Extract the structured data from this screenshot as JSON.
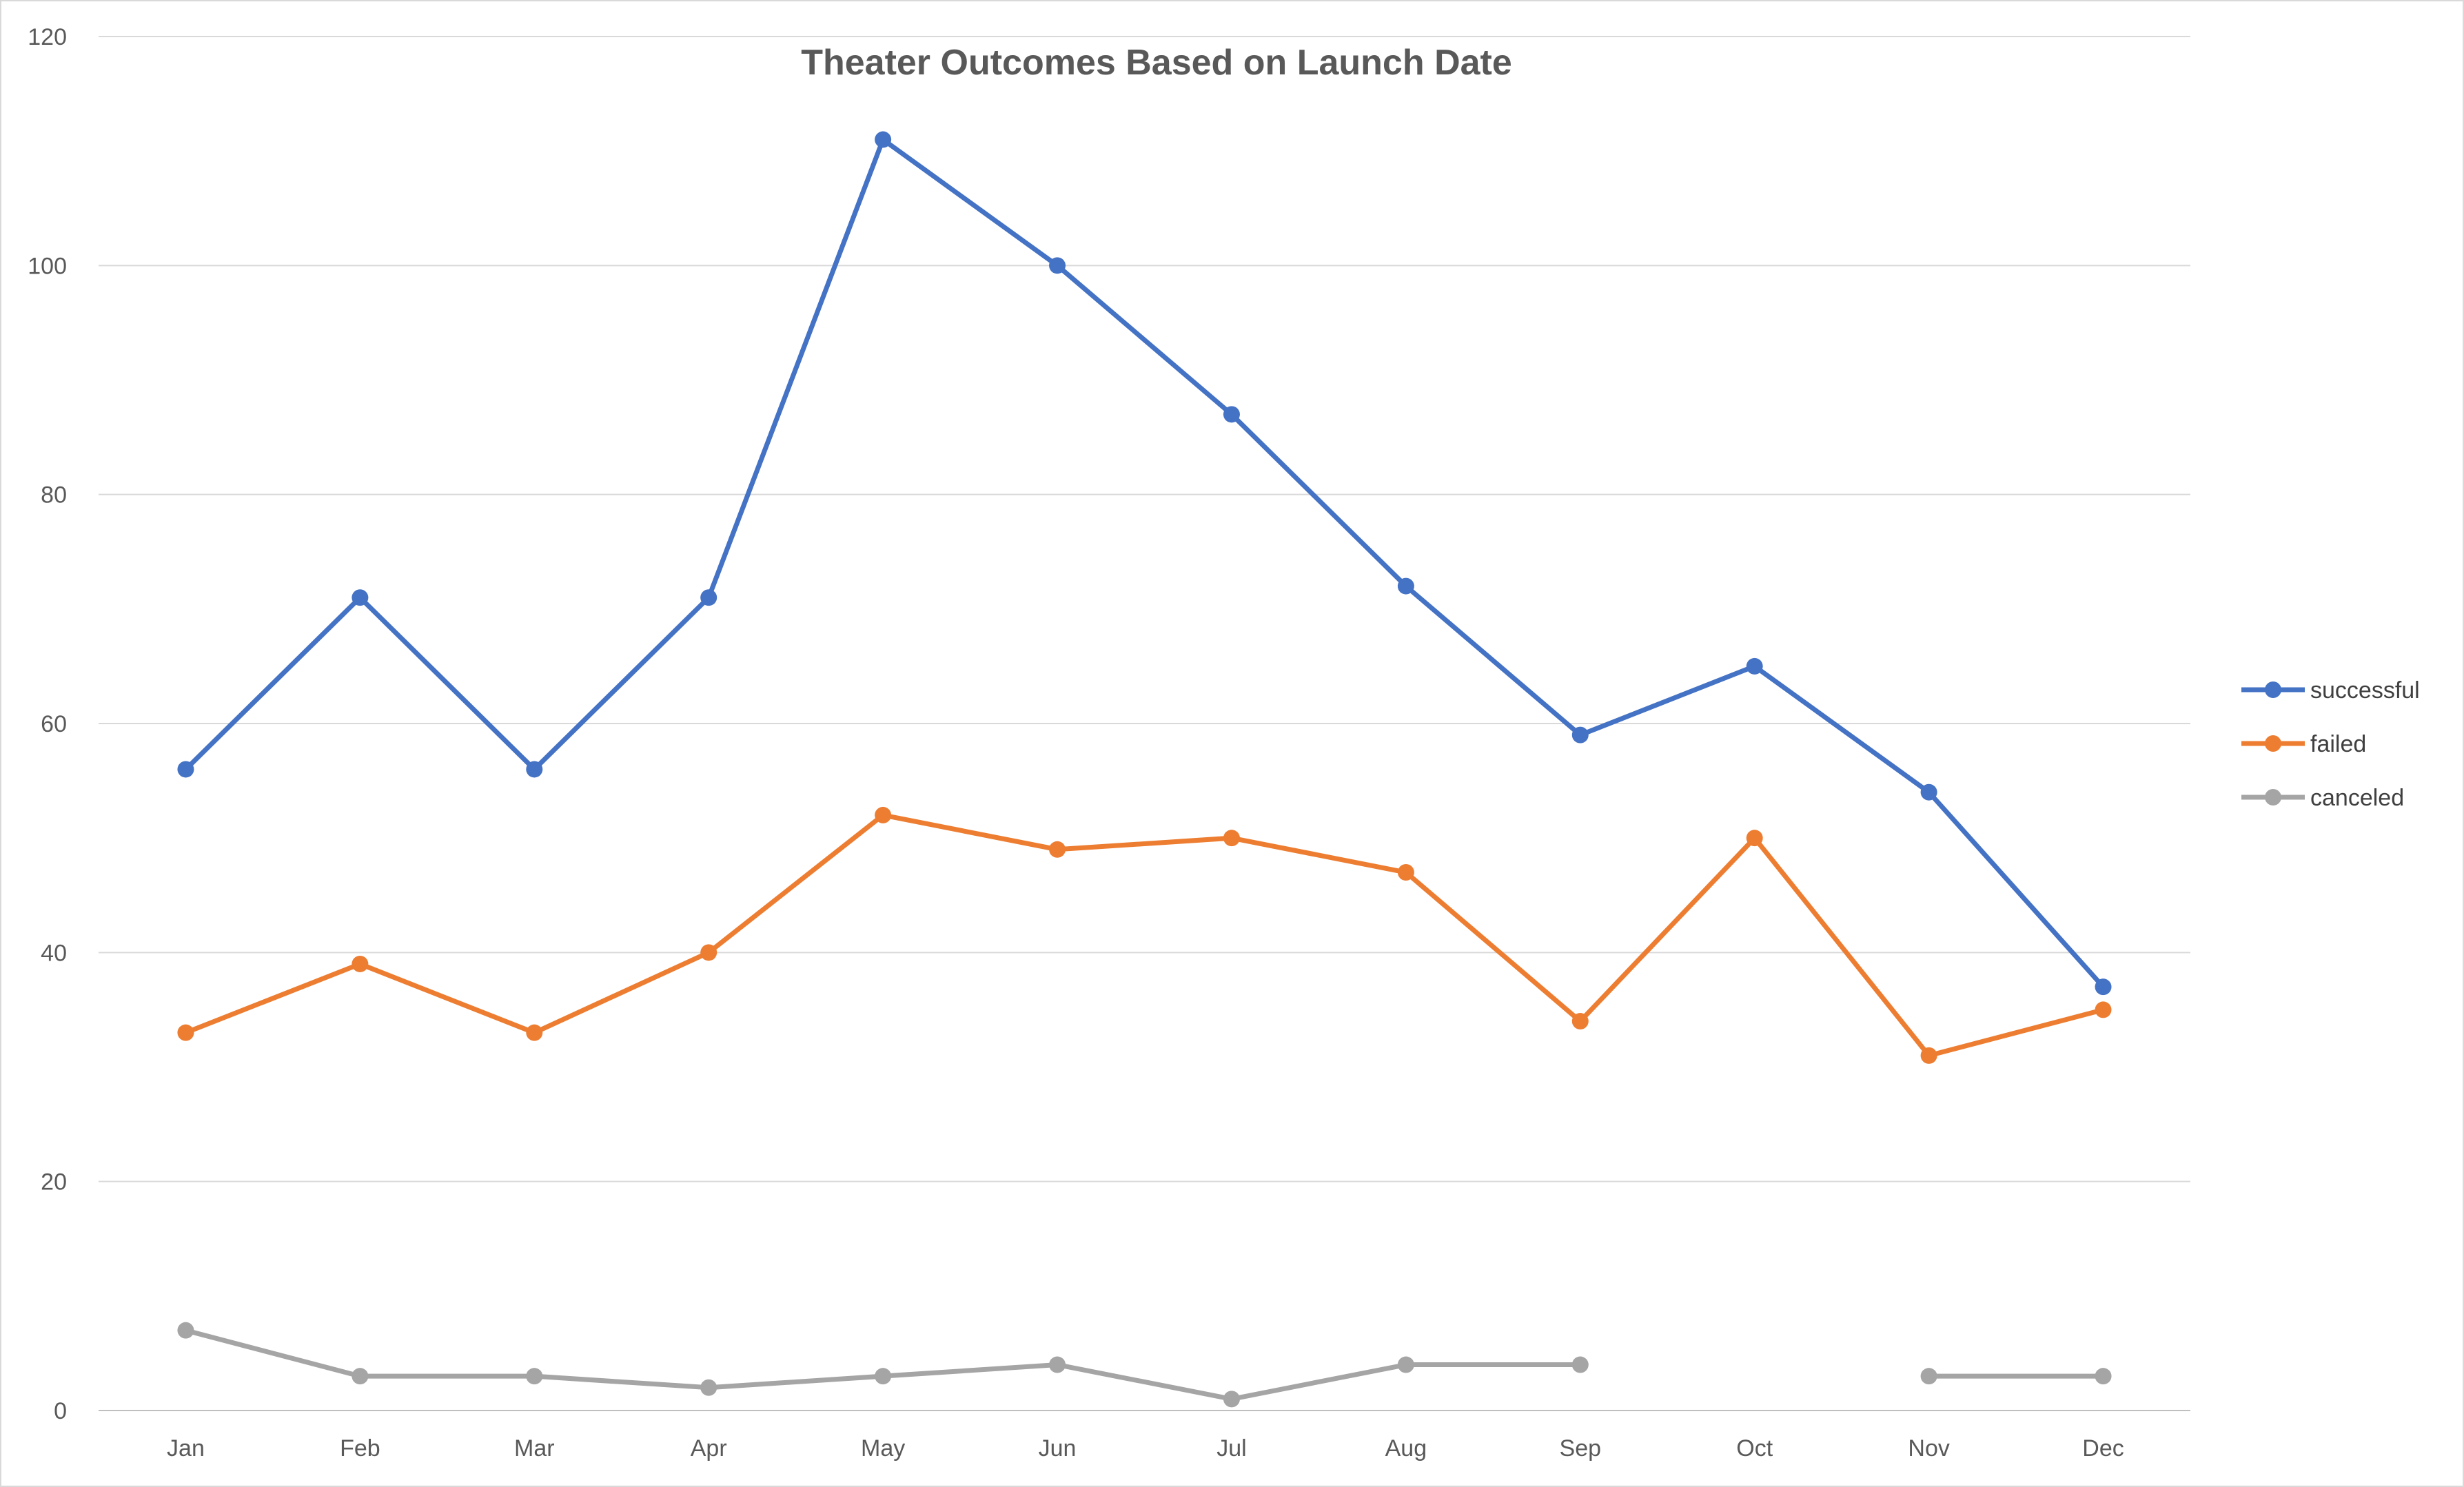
{
  "chart_data": {
    "type": "line",
    "title": "Theater Outcomes Based on Launch Date",
    "xlabel": "",
    "ylabel": "",
    "categories": [
      "Jan",
      "Feb",
      "Mar",
      "Apr",
      "May",
      "Jun",
      "Jul",
      "Aug",
      "Sep",
      "Oct",
      "Nov",
      "Dec"
    ],
    "ylim": [
      0,
      120
    ],
    "yticks": [
      0,
      20,
      40,
      60,
      80,
      100,
      120
    ],
    "grid": true,
    "legend_position": "right",
    "series": [
      {
        "name": "successful",
        "color": "#4472C4",
        "values": [
          56,
          71,
          56,
          71,
          111,
          100,
          87,
          72,
          59,
          65,
          54,
          37
        ]
      },
      {
        "name": "failed",
        "color": "#ED7D31",
        "values": [
          33,
          39,
          33,
          40,
          52,
          49,
          50,
          47,
          34,
          50,
          31,
          35
        ]
      },
      {
        "name": "canceled",
        "color": "#A5A5A5",
        "values": [
          7,
          3,
          3,
          2,
          3,
          4,
          1,
          4,
          4,
          null,
          3,
          3
        ]
      }
    ]
  }
}
